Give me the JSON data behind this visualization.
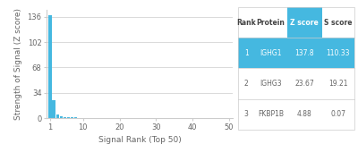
{
  "bar_color": "#45b8e0",
  "bar_values": [
    137.8,
    23.67,
    4.88,
    2.5,
    1.8,
    1.2,
    0.9,
    0.7,
    0.5,
    0.4,
    0.35,
    0.3,
    0.28,
    0.25,
    0.23,
    0.21,
    0.19,
    0.18,
    0.17,
    0.16,
    0.15,
    0.14,
    0.13,
    0.12,
    0.11,
    0.1,
    0.09,
    0.09,
    0.08,
    0.08,
    0.07,
    0.07,
    0.06,
    0.06,
    0.06,
    0.05,
    0.05,
    0.05,
    0.04,
    0.04,
    0.04,
    0.04,
    0.03,
    0.03,
    0.03,
    0.03,
    0.02,
    0.02,
    0.02,
    0.02
  ],
  "xlabel": "Signal Rank (Top 50)",
  "ylabel": "Strength of Signal (Z score)",
  "yticks": [
    0,
    34,
    68,
    102,
    136
  ],
  "xticks": [
    1,
    10,
    20,
    30,
    40,
    50
  ],
  "ylim": [
    0,
    145
  ],
  "xlim": [
    0,
    51
  ],
  "table_header": [
    "Rank",
    "Protein",
    "Z score",
    "S score"
  ],
  "table_data": [
    [
      "1",
      "IGHG1",
      "137.8",
      "110.33"
    ],
    [
      "2",
      "IGHG3",
      "23.67",
      "19.21"
    ],
    [
      "3",
      "FKBP1B",
      "4.88",
      "0.07"
    ]
  ],
  "table_highlight_color": "#45b8e0",
  "table_highlight_text_color": "#ffffff",
  "table_text_color": "#666666",
  "table_header_text_color": "#444444",
  "background_color": "#ffffff",
  "grid_color": "#cccccc",
  "label_fontsize": 6.5,
  "tick_fontsize": 6,
  "table_fontsize": 5.5,
  "table_header_fontsize": 5.5
}
